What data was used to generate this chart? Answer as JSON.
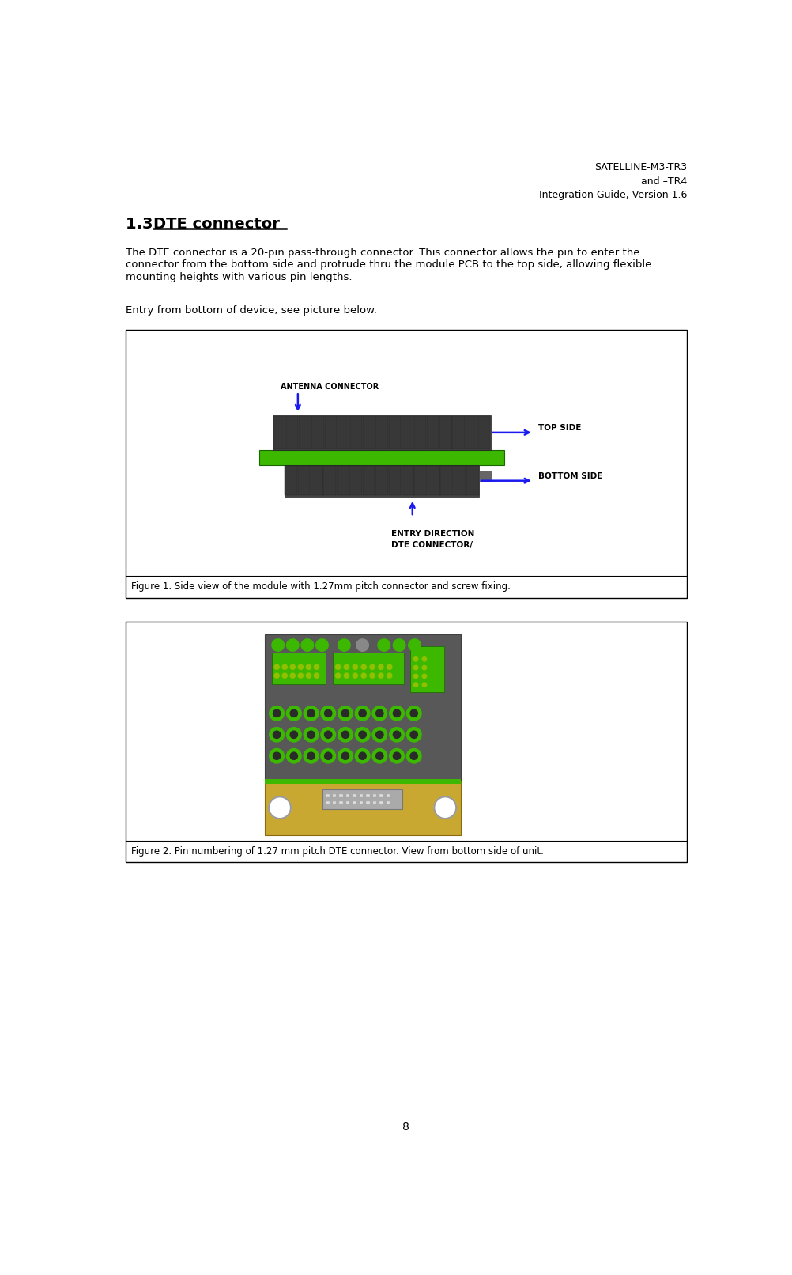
{
  "header_line1": "SATELLINE-M3-TR3",
  "header_line2": "and –TR4",
  "header_line3": "Integration Guide, Version 1.6",
  "body_text_line1": "The DTE connector is a 20-pin pass-through connector. This connector allows the pin to enter the",
  "body_text_line2": "connector from the bottom side and protrude thru the module PCB to the top side, allowing flexible",
  "body_text_line3": "mounting heights with various pin lengths.",
  "entry_text": "Entry from bottom of device, see picture below.",
  "fig1_caption": "Figure 1. Side view of the module with 1.27mm pitch connector and screw fixing.",
  "fig2_caption": "Figure 2. Pin numbering of 1.27 mm pitch DTE connector. View from bottom side of unit.",
  "page_number": "8",
  "heading_prefix": "1.3  ",
  "heading_suffix": "DTE connector",
  "ant_label": "ANTENNA CONNECTOR",
  "top_side_label": "TOP SIDE",
  "bot_side_label": "BOTTOM SIDE",
  "dte_label1": "DTE CONNECTOR/",
  "dte_label2": "ENTRY DIRECTION",
  "bg_color": "#ffffff",
  "text_color": "#000000",
  "border_color": "#000000",
  "green_color": "#3cb800",
  "gray_dark": "#404040",
  "gray_mid": "#606060",
  "blue_arrow": "#1a1aee",
  "gold_color": "#c8a830",
  "pad_green": "#90c000"
}
